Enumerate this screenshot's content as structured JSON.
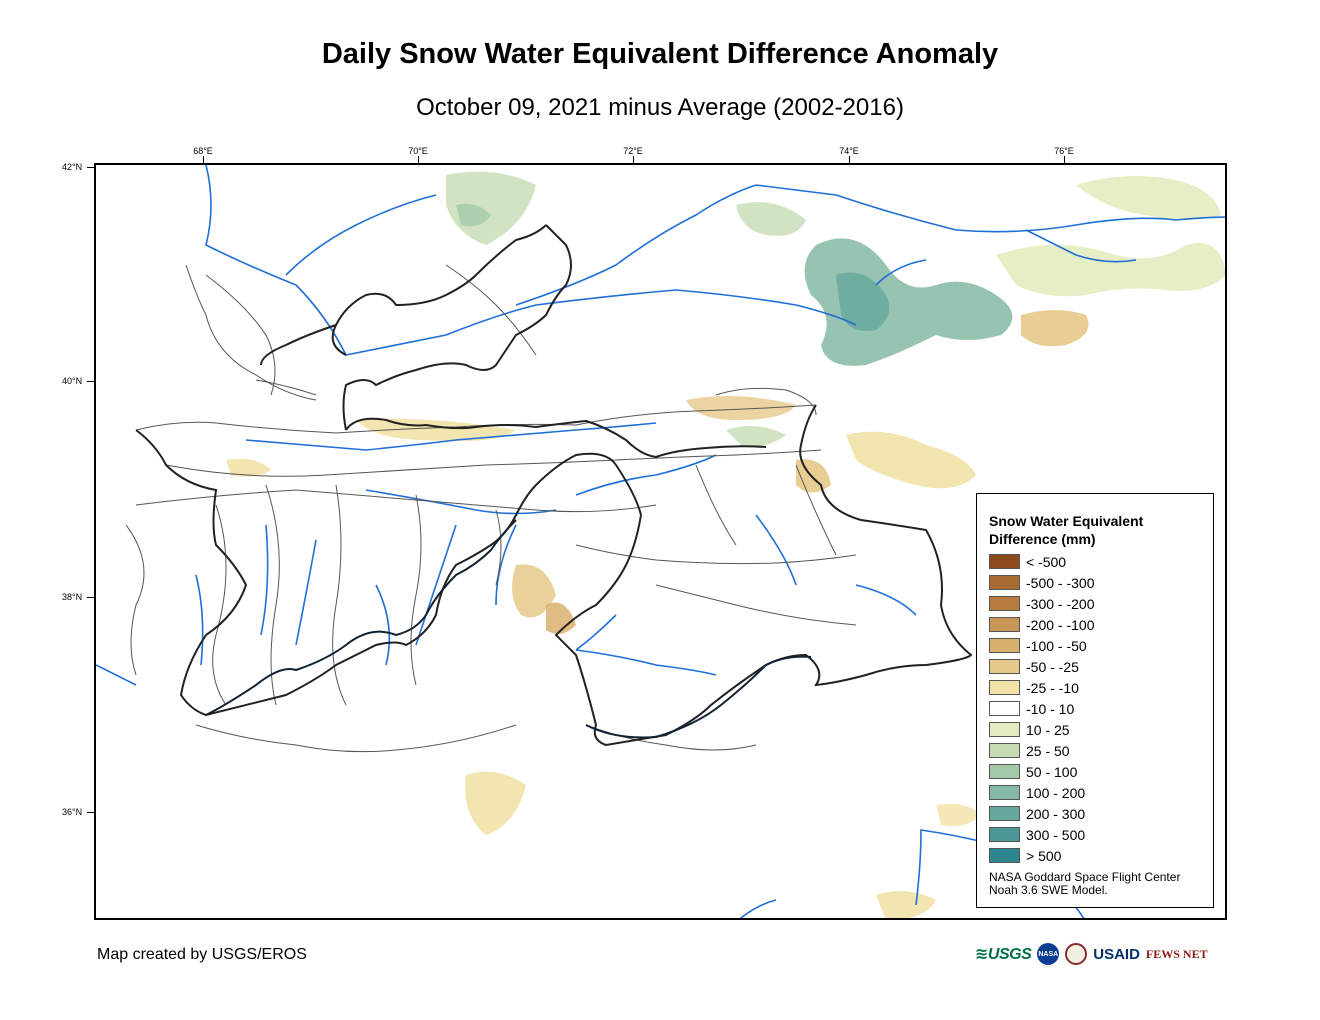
{
  "header": {
    "title": "Daily Snow Water Equivalent Difference Anomaly",
    "subtitle": "October 09, 2021 minus Average (2002-2016)"
  },
  "axes": {
    "longitude_ticks": [
      "68°E",
      "70°E",
      "72°E",
      "74°E",
      "76°E"
    ],
    "latitude_ticks": [
      "42°N",
      "40°N",
      "38°N",
      "36°N"
    ]
  },
  "legend": {
    "title_line1": "Snow Water Equivalent",
    "title_line2": "Difference (mm)",
    "classes": [
      {
        "label": "< -500",
        "color": "#8c4a1e"
      },
      {
        "label": "-500 - -300",
        "color": "#a86a30"
      },
      {
        "label": "-300 - -200",
        "color": "#b77d3e"
      },
      {
        "label": "-200 - -100",
        "color": "#c89657"
      },
      {
        "label": "-100 - -50",
        "color": "#d8b06e"
      },
      {
        "label": "-50 - -25",
        "color": "#e6c98a"
      },
      {
        "label": "-25 - -10",
        "color": "#f1e2a6"
      },
      {
        "label": "-10 - 10",
        "color": "#ffffff"
      },
      {
        "label": "10 - 25",
        "color": "#e3ecc0"
      },
      {
        "label": "25 - 50",
        "color": "#c5dcb3"
      },
      {
        "label": "50 - 100",
        "color": "#a3c9a8"
      },
      {
        "label": "100 - 200",
        "color": "#85b9a3"
      },
      {
        "label": "200 - 300",
        "color": "#67a89e"
      },
      {
        "label": "300 - 500",
        "color": "#4b9796"
      },
      {
        "label": "> 500",
        "color": "#2e8590"
      }
    ],
    "credit_line1": "NASA Goddard Space Flight Center",
    "credit_line2": "Noah 3.6 SWE Model."
  },
  "footer": {
    "credit": "Map created by USGS/EROS"
  },
  "logos": {
    "usgs": "≋USGS",
    "nasa": "NASA",
    "usaid": "USAID",
    "fews": "FEWS NET"
  },
  "colors": {
    "river": "#1f6fd6",
    "boundary": "#222222",
    "admin": "#555555"
  }
}
